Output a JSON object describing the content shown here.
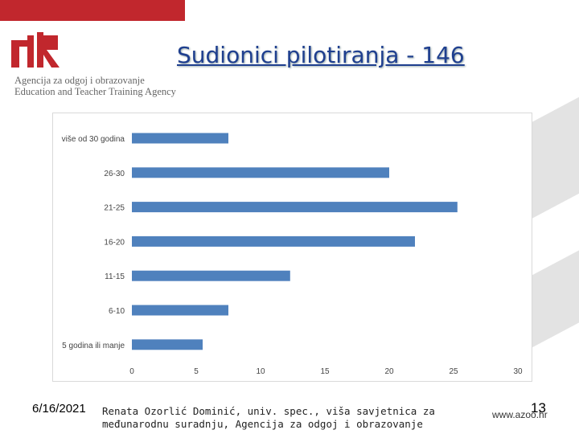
{
  "header": {
    "org_line1": "Agencija za odgoj i obrazovanje",
    "org_line2": "Education and Teacher Training Agency",
    "logo_icon": "azoo-logo-icon",
    "accent": "#c1272d"
  },
  "title": "Sudionici pilotiranja - 146",
  "chart_data": {
    "type": "bar",
    "orientation": "horizontal",
    "categories": [
      "više od 30 godina",
      "26-30",
      "21-25",
      "16-20",
      "11-15",
      "6-10",
      "5 godina ili manje"
    ],
    "values": [
      7.5,
      20,
      25.3,
      22,
      12.3,
      7.5,
      5.5
    ],
    "xlim": [
      0,
      30
    ],
    "xticks": [
      0,
      5,
      10,
      15,
      20,
      25,
      30
    ],
    "bar_color": "#4f81bd",
    "grid": false,
    "legend": "none"
  },
  "footer": {
    "date": "6/16/2021",
    "author": "Renata Ozorlić Dominić, univ. spec., viša savjetnica za međunarodnu suradnju, Agencija za odgoj i obrazovanje",
    "page": "13",
    "url": "www.azoo.hr"
  }
}
